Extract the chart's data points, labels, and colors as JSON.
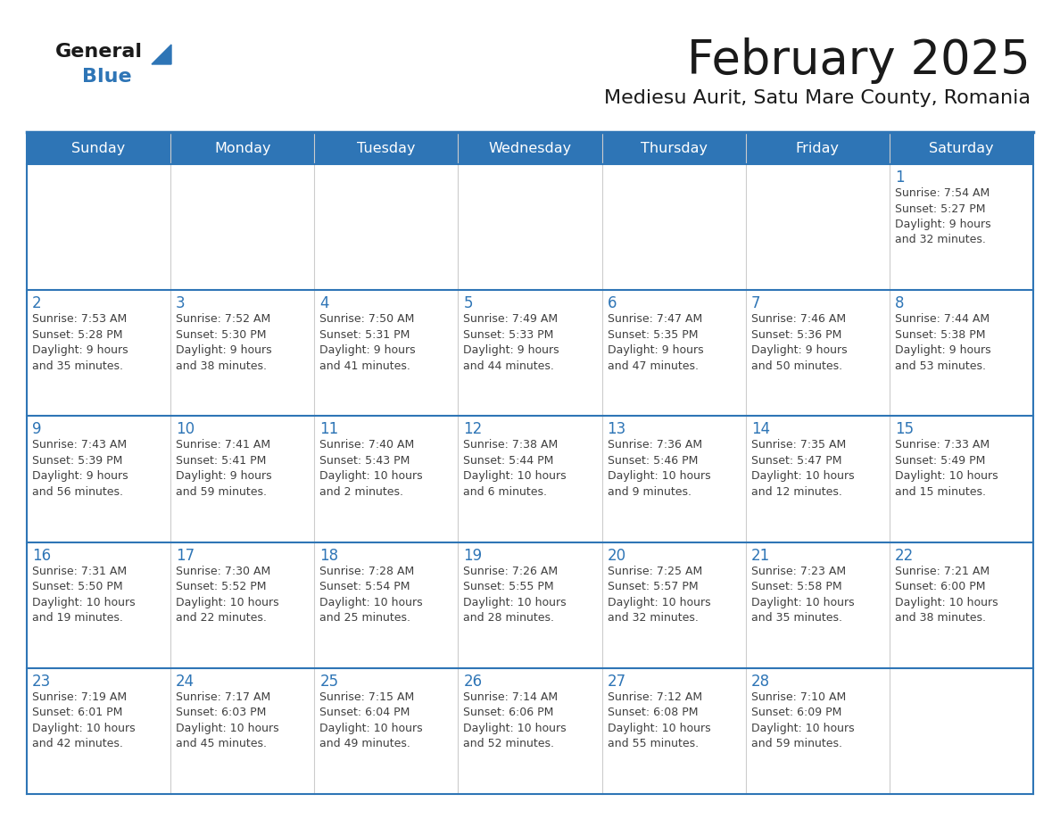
{
  "title": "February 2025",
  "subtitle": "Mediesu Aurit, Satu Mare County, Romania",
  "days_of_week": [
    "Sunday",
    "Monday",
    "Tuesday",
    "Wednesday",
    "Thursday",
    "Friday",
    "Saturday"
  ],
  "header_bg": "#2E75B6",
  "header_text": "#FFFFFF",
  "cell_bg": "#FFFFFF",
  "border_color": "#2E75B6",
  "day_num_color": "#2E75B6",
  "text_color": "#404040",
  "title_color": "#1a1a1a",
  "calendar_data": [
    [
      {
        "day": null,
        "info": ""
      },
      {
        "day": null,
        "info": ""
      },
      {
        "day": null,
        "info": ""
      },
      {
        "day": null,
        "info": ""
      },
      {
        "day": null,
        "info": ""
      },
      {
        "day": null,
        "info": ""
      },
      {
        "day": 1,
        "info": "Sunrise: 7:54 AM\nSunset: 5:27 PM\nDaylight: 9 hours\nand 32 minutes."
      }
    ],
    [
      {
        "day": 2,
        "info": "Sunrise: 7:53 AM\nSunset: 5:28 PM\nDaylight: 9 hours\nand 35 minutes."
      },
      {
        "day": 3,
        "info": "Sunrise: 7:52 AM\nSunset: 5:30 PM\nDaylight: 9 hours\nand 38 minutes."
      },
      {
        "day": 4,
        "info": "Sunrise: 7:50 AM\nSunset: 5:31 PM\nDaylight: 9 hours\nand 41 minutes."
      },
      {
        "day": 5,
        "info": "Sunrise: 7:49 AM\nSunset: 5:33 PM\nDaylight: 9 hours\nand 44 minutes."
      },
      {
        "day": 6,
        "info": "Sunrise: 7:47 AM\nSunset: 5:35 PM\nDaylight: 9 hours\nand 47 minutes."
      },
      {
        "day": 7,
        "info": "Sunrise: 7:46 AM\nSunset: 5:36 PM\nDaylight: 9 hours\nand 50 minutes."
      },
      {
        "day": 8,
        "info": "Sunrise: 7:44 AM\nSunset: 5:38 PM\nDaylight: 9 hours\nand 53 minutes."
      }
    ],
    [
      {
        "day": 9,
        "info": "Sunrise: 7:43 AM\nSunset: 5:39 PM\nDaylight: 9 hours\nand 56 minutes."
      },
      {
        "day": 10,
        "info": "Sunrise: 7:41 AM\nSunset: 5:41 PM\nDaylight: 9 hours\nand 59 minutes."
      },
      {
        "day": 11,
        "info": "Sunrise: 7:40 AM\nSunset: 5:43 PM\nDaylight: 10 hours\nand 2 minutes."
      },
      {
        "day": 12,
        "info": "Sunrise: 7:38 AM\nSunset: 5:44 PM\nDaylight: 10 hours\nand 6 minutes."
      },
      {
        "day": 13,
        "info": "Sunrise: 7:36 AM\nSunset: 5:46 PM\nDaylight: 10 hours\nand 9 minutes."
      },
      {
        "day": 14,
        "info": "Sunrise: 7:35 AM\nSunset: 5:47 PM\nDaylight: 10 hours\nand 12 minutes."
      },
      {
        "day": 15,
        "info": "Sunrise: 7:33 AM\nSunset: 5:49 PM\nDaylight: 10 hours\nand 15 minutes."
      }
    ],
    [
      {
        "day": 16,
        "info": "Sunrise: 7:31 AM\nSunset: 5:50 PM\nDaylight: 10 hours\nand 19 minutes."
      },
      {
        "day": 17,
        "info": "Sunrise: 7:30 AM\nSunset: 5:52 PM\nDaylight: 10 hours\nand 22 minutes."
      },
      {
        "day": 18,
        "info": "Sunrise: 7:28 AM\nSunset: 5:54 PM\nDaylight: 10 hours\nand 25 minutes."
      },
      {
        "day": 19,
        "info": "Sunrise: 7:26 AM\nSunset: 5:55 PM\nDaylight: 10 hours\nand 28 minutes."
      },
      {
        "day": 20,
        "info": "Sunrise: 7:25 AM\nSunset: 5:57 PM\nDaylight: 10 hours\nand 32 minutes."
      },
      {
        "day": 21,
        "info": "Sunrise: 7:23 AM\nSunset: 5:58 PM\nDaylight: 10 hours\nand 35 minutes."
      },
      {
        "day": 22,
        "info": "Sunrise: 7:21 AM\nSunset: 6:00 PM\nDaylight: 10 hours\nand 38 minutes."
      }
    ],
    [
      {
        "day": 23,
        "info": "Sunrise: 7:19 AM\nSunset: 6:01 PM\nDaylight: 10 hours\nand 42 minutes."
      },
      {
        "day": 24,
        "info": "Sunrise: 7:17 AM\nSunset: 6:03 PM\nDaylight: 10 hours\nand 45 minutes."
      },
      {
        "day": 25,
        "info": "Sunrise: 7:15 AM\nSunset: 6:04 PM\nDaylight: 10 hours\nand 49 minutes."
      },
      {
        "day": 26,
        "info": "Sunrise: 7:14 AM\nSunset: 6:06 PM\nDaylight: 10 hours\nand 52 minutes."
      },
      {
        "day": 27,
        "info": "Sunrise: 7:12 AM\nSunset: 6:08 PM\nDaylight: 10 hours\nand 55 minutes."
      },
      {
        "day": 28,
        "info": "Sunrise: 7:10 AM\nSunset: 6:09 PM\nDaylight: 10 hours\nand 59 minutes."
      },
      {
        "day": null,
        "info": ""
      }
    ]
  ],
  "logo_color_general": "#1a1a1a",
  "logo_color_blue": "#2E75B6",
  "logo_triangle_color": "#2E75B6"
}
